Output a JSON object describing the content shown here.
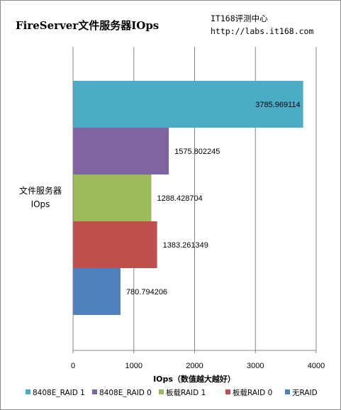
{
  "chart_data": {
    "type": "bar",
    "orientation": "horizontal",
    "title": "FireServer文件服务器IOps",
    "source": [
      "IT168评测中心",
      "http://labs.it168.com"
    ],
    "categories": [
      "文件服务器",
      "IOps"
    ],
    "xlabel": "IOps（数值越大越好）",
    "xlim": [
      0,
      4000
    ],
    "xticks": [
      0,
      1000,
      2000,
      3000,
      4000
    ],
    "grid": true,
    "legend_position": "bottom",
    "series": [
      {
        "name": "8408E_RAID 1",
        "value": 3785.969114,
        "label": "3785.969114",
        "color": "#4BACC6"
      },
      {
        "name": "8408E_RAID 0",
        "value": 1575.802245,
        "label": "1575.802245",
        "color": "#8064A2"
      },
      {
        "name": "板载RAID 1",
        "value": 1288.428704,
        "label": "1288.428704",
        "color": "#9BBB59"
      },
      {
        "name": "板载RAID 0",
        "value": 1383.261349,
        "label": "1383.261349",
        "color": "#C0504D"
      },
      {
        "name": "无RAID",
        "value": 780.794206,
        "label": "780.794206",
        "color": "#4F81BD"
      }
    ]
  }
}
